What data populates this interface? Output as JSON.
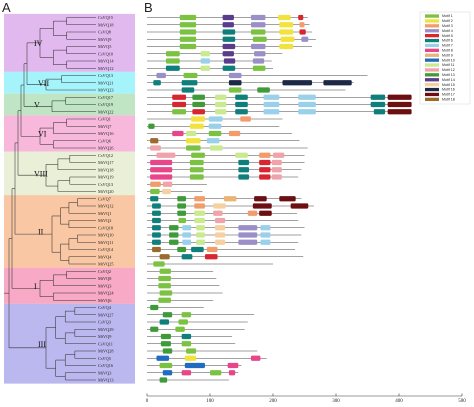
{
  "panels": {
    "a": "A",
    "b": "B"
  },
  "genes": [
    "CsVQ15",
    "MtVQ18",
    "CsVQ8",
    "MtVQ9",
    "MtVQ5",
    "CsVQ10",
    "MtVQ14",
    "MtVQ12",
    "CsVQ13",
    "MtVQ21",
    "MtVQ23",
    "CsVQ17",
    "CsVQ19",
    "MtVQ22",
    "CsVQ1",
    "MtVQ7",
    "MtVQ16",
    "CsVQ6",
    "MtVQ26",
    "CsVQ12",
    "MtVQ17",
    "MtVQ18",
    "MtVQ19",
    "CsVQ13",
    "MtVQ20",
    "CsVQ7",
    "MtVQ12",
    "MtVQ1",
    "MtVQ2",
    "CsVQ18",
    "MtVQ10",
    "MtVQ11",
    "CsVQ14",
    "MtVQ4",
    "MtVQ25",
    "CsVQ2",
    "MtVQ8",
    "MtVQ3",
    "MtVQ24",
    "MtVQ6",
    "CsVQ4",
    "MtVQ27",
    "CsVQ3",
    "MtVQ29",
    "MtVQ9",
    "CsVQ11",
    "MtVQ28",
    "CsVQ5",
    "CsVQ16",
    "MtVQ3",
    "MtVQ13"
  ],
  "clades": [
    {
      "label": "IV",
      "start": 0,
      "end": 7,
      "color": "#e2b9ee"
    },
    {
      "label": "VII",
      "start": 8,
      "end": 10,
      "color": "#a6f4fb"
    },
    {
      "label": "V",
      "start": 11,
      "end": 13,
      "color": "#bfe5c5"
    },
    {
      "label": "VI",
      "start": 14,
      "end": 18,
      "color": "#f7b8dc"
    },
    {
      "label": "VIII",
      "start": 19,
      "end": 24,
      "color": "#e9f0d7"
    },
    {
      "label": "II",
      "start": 25,
      "end": 34,
      "color": "#f9c7a4"
    },
    {
      "label": "I",
      "start": 35,
      "end": 39,
      "color": "#f7a9c5"
    },
    {
      "label": "III",
      "start": 40,
      "end": 50,
      "color": "#bbb8ef"
    }
  ],
  "axis": {
    "min": 0,
    "max": 500,
    "ticks": [
      "0",
      "100",
      "200",
      "300",
      "400",
      "500"
    ]
  },
  "legend": [
    {
      "name": "Motif 1",
      "color": "#7cc242"
    },
    {
      "name": "Motif 2",
      "color": "#f2e23c"
    },
    {
      "name": "Motif 3",
      "color": "#f29c6b"
    },
    {
      "name": "Motif 4",
      "color": "#9a8fc7"
    },
    {
      "name": "Motif 5",
      "color": "#d7262f"
    },
    {
      "name": "Motif 6",
      "color": "#0f7f7b"
    },
    {
      "name": "Motif 7",
      "color": "#9ad0ea"
    },
    {
      "name": "Motif 8",
      "color": "#e8458b"
    },
    {
      "name": "Motif 9",
      "color": "#e9b574"
    },
    {
      "name": "Motif 10",
      "color": "#1f6cc2"
    },
    {
      "name": "Motif 11",
      "color": "#c9ea8f"
    },
    {
      "name": "Motif 12",
      "color": "#f0a3a8"
    },
    {
      "name": "Motif 13",
      "color": "#3f9a3a"
    },
    {
      "name": "Motif 14",
      "color": "#5b3c8c"
    },
    {
      "name": "Motif 15",
      "color": "#f7d0a0"
    },
    {
      "name": "Motif 16",
      "color": "#1d2846"
    },
    {
      "name": "Motif 17",
      "color": "#6b0f12"
    },
    {
      "name": "Motif 18",
      "color": "#9b6a2f"
    }
  ],
  "proteins": [
    {
      "length": 255,
      "motifs": [
        [
          52,
          78,
          1
        ],
        [
          120,
          138,
          14
        ],
        [
          165,
          188,
          4
        ],
        [
          208,
          228,
          2
        ],
        [
          240,
          248,
          5
        ]
      ]
    },
    {
      "length": 258,
      "motifs": [
        [
          52,
          78,
          1
        ],
        [
          120,
          138,
          14
        ],
        [
          165,
          188,
          4
        ],
        [
          210,
          232,
          2
        ],
        [
          242,
          250,
          3
        ]
      ]
    },
    {
      "length": 262,
      "motifs": [
        [
          52,
          78,
          1
        ],
        [
          120,
          140,
          6
        ],
        [
          165,
          188,
          1
        ],
        [
          210,
          232,
          2
        ],
        [
          242,
          252,
          5
        ]
      ]
    },
    {
      "length": 268,
      "motifs": [
        [
          52,
          78,
          1
        ],
        [
          120,
          140,
          6
        ],
        [
          168,
          190,
          1
        ],
        [
          212,
          234,
          2
        ],
        [
          245,
          256,
          4
        ]
      ]
    },
    {
      "length": 262,
      "motifs": [
        [
          52,
          78,
          1
        ],
        [
          120,
          140,
          14
        ],
        [
          165,
          188,
          4
        ],
        [
          210,
          232,
          2
        ]
      ]
    },
    {
      "length": 215,
      "motifs": [
        [
          30,
          52,
          1
        ],
        [
          85,
          100,
          11
        ],
        [
          120,
          138,
          14
        ],
        [
          170,
          188,
          4
        ]
      ]
    },
    {
      "length": 198,
      "motifs": [
        [
          30,
          52,
          1
        ],
        [
          85,
          100,
          7
        ],
        [
          122,
          140,
          14
        ],
        [
          168,
          186,
          4
        ]
      ]
    },
    {
      "length": 200,
      "motifs": [
        [
          30,
          52,
          6
        ],
        [
          85,
          100,
          11
        ],
        [
          120,
          140,
          6
        ],
        [
          168,
          188,
          1
        ]
      ]
    },
    {
      "length": 350,
      "motifs": [
        [
          15,
          30,
          4
        ],
        [
          58,
          80,
          1
        ],
        [
          130,
          150,
          4
        ]
      ]
    },
    {
      "length": 328,
      "motifs": [
        [
          10,
          22,
          6
        ],
        [
          55,
          80,
          6
        ],
        [
          130,
          150,
          16
        ],
        [
          215,
          262,
          16
        ],
        [
          280,
          325,
          16
        ]
      ]
    },
    {
      "length": 315,
      "motifs": [
        [
          55,
          75,
          6
        ],
        [
          130,
          150,
          1
        ],
        [
          175,
          195,
          13
        ]
      ]
    },
    {
      "length": 415,
      "motifs": [
        [
          40,
          62,
          5
        ],
        [
          72,
          92,
          13
        ],
        [
          108,
          126,
          11
        ],
        [
          140,
          160,
          6
        ],
        [
          185,
          210,
          7
        ],
        [
          240,
          268,
          7
        ],
        [
          355,
          378,
          6
        ],
        [
          382,
          420,
          17
        ]
      ]
    },
    {
      "length": 410,
      "motifs": [
        [
          40,
          62,
          5
        ],
        [
          72,
          92,
          13
        ],
        [
          108,
          126,
          11
        ],
        [
          140,
          160,
          6
        ],
        [
          185,
          210,
          7
        ],
        [
          240,
          268,
          7
        ],
        [
          355,
          378,
          6
        ],
        [
          382,
          420,
          17
        ]
      ]
    },
    {
      "length": 405,
      "motifs": [
        [
          40,
          62,
          1
        ],
        [
          72,
          92,
          5
        ],
        [
          108,
          126,
          11
        ],
        [
          140,
          160,
          6
        ],
        [
          185,
          210,
          7
        ],
        [
          240,
          268,
          7
        ],
        [
          360,
          378,
          6
        ],
        [
          382,
          420,
          17
        ]
      ]
    },
    {
      "length": 215,
      "motifs": [
        [
          70,
          92,
          2
        ],
        [
          98,
          120,
          7
        ],
        [
          148,
          165,
          3
        ]
      ]
    },
    {
      "length": 210,
      "motifs": [
        [
          2,
          12,
          13
        ],
        [
          68,
          90,
          2
        ],
        [
          98,
          118,
          7
        ]
      ]
    },
    {
      "length": 230,
      "motifs": [
        [
          40,
          58,
          8
        ],
        [
          62,
          78,
          11
        ],
        [
          98,
          118,
          1
        ],
        [
          130,
          148,
          3
        ]
      ]
    },
    {
      "length": 242,
      "motifs": [
        [
          5,
          18,
          18
        ],
        [
          62,
          85,
          2
        ],
        [
          95,
          115,
          7
        ]
      ]
    },
    {
      "length": 255,
      "motifs": [
        [
          5,
          22,
          12
        ],
        [
          62,
          85,
          1
        ],
        [
          100,
          120,
          11
        ]
      ]
    },
    {
      "length": 250,
      "motifs": [
        [
          15,
          45,
          12
        ],
        [
          70,
          92,
          1
        ],
        [
          140,
          160,
          11
        ],
        [
          178,
          196,
          3
        ],
        [
          200,
          218,
          12
        ]
      ]
    },
    {
      "length": 250,
      "motifs": [
        [
          5,
          40,
          8
        ],
        [
          68,
          90,
          1
        ],
        [
          145,
          162,
          6
        ],
        [
          178,
          196,
          5
        ],
        [
          198,
          214,
          12
        ]
      ]
    },
    {
      "length": 245,
      "motifs": [
        [
          5,
          40,
          8
        ],
        [
          68,
          90,
          1
        ],
        [
          145,
          162,
          6
        ],
        [
          178,
          196,
          5
        ],
        [
          198,
          214,
          12
        ]
      ]
    },
    {
      "length": 240,
      "motifs": [
        [
          5,
          40,
          8
        ],
        [
          68,
          90,
          1
        ],
        [
          145,
          162,
          6
        ],
        [
          178,
          196,
          5
        ],
        [
          198,
          214,
          12
        ]
      ]
    },
    {
      "length": 95,
      "motifs": [
        [
          5,
          22,
          3
        ],
        [
          25,
          40,
          12
        ]
      ]
    },
    {
      "length": 88,
      "motifs": [
        [
          5,
          20,
          1
        ],
        [
          24,
          38,
          15
        ]
      ]
    },
    {
      "length": 245,
      "motifs": [
        [
          5,
          18,
          6
        ],
        [
          48,
          62,
          13
        ],
        [
          75,
          92,
          3
        ],
        [
          122,
          142,
          9
        ],
        [
          170,
          190,
          17
        ],
        [
          210,
          236,
          17
        ]
      ]
    },
    {
      "length": 265,
      "motifs": [
        [
          8,
          22,
          6
        ],
        [
          48,
          62,
          13
        ],
        [
          75,
          92,
          3
        ],
        [
          105,
          125,
          15
        ],
        [
          168,
          198,
          17
        ],
        [
          228,
          256,
          17
        ]
      ]
    },
    {
      "length": 238,
      "motifs": [
        [
          8,
          22,
          6
        ],
        [
          48,
          62,
          13
        ],
        [
          75,
          92,
          11
        ],
        [
          105,
          120,
          12
        ],
        [
          160,
          175,
          3
        ],
        [
          178,
          198,
          17
        ]
      ]
    },
    {
      "length": 240,
      "motifs": [
        [
          8,
          22,
          6
        ],
        [
          50,
          62,
          1
        ],
        [
          75,
          92,
          11
        ],
        [
          108,
          124,
          12
        ]
      ]
    },
    {
      "length": 250,
      "motifs": [
        [
          8,
          22,
          6
        ],
        [
          35,
          50,
          13
        ],
        [
          56,
          70,
          7
        ],
        [
          78,
          92,
          11
        ],
        [
          108,
          124,
          15
        ],
        [
          145,
          175,
          4
        ],
        [
          180,
          196,
          7
        ]
      ]
    },
    {
      "length": 245,
      "motifs": [
        [
          8,
          22,
          6
        ],
        [
          35,
          50,
          13
        ],
        [
          56,
          70,
          7
        ],
        [
          78,
          92,
          11
        ],
        [
          108,
          124,
          15
        ],
        [
          145,
          175,
          4
        ],
        [
          180,
          196,
          7
        ]
      ]
    },
    {
      "length": 240,
      "motifs": [
        [
          8,
          22,
          6
        ],
        [
          35,
          50,
          13
        ],
        [
          56,
          70,
          7
        ],
        [
          78,
          92,
          11
        ],
        [
          108,
          124,
          15
        ],
        [
          145,
          175,
          4
        ],
        [
          180,
          196,
          7
        ]
      ]
    },
    {
      "length": 235,
      "motifs": [
        [
          8,
          22,
          18
        ],
        [
          48,
          62,
          13
        ],
        [
          70,
          90,
          6
        ],
        [
          95,
          112,
          3
        ]
      ]
    },
    {
      "length": 248,
      "motifs": [
        [
          20,
          36,
          18
        ],
        [
          55,
          72,
          6
        ],
        [
          92,
          112,
          5
        ]
      ]
    },
    {
      "length": 200,
      "motifs": [
        [
          10,
          28,
          1
        ]
      ]
    },
    {
      "length": 105,
      "motifs": [
        [
          20,
          38,
          1
        ]
      ]
    },
    {
      "length": 110,
      "motifs": [
        [
          18,
          38,
          1
        ]
      ]
    },
    {
      "length": 115,
      "motifs": [
        [
          18,
          38,
          1
        ]
      ]
    },
    {
      "length": 120,
      "motifs": [
        [
          20,
          40,
          1
        ]
      ]
    },
    {
      "length": 105,
      "motifs": [
        [
          18,
          38,
          1
        ]
      ]
    },
    {
      "length": 90,
      "motifs": [
        [
          5,
          18,
          13
        ]
      ]
    },
    {
      "length": 170,
      "motifs": [
        [
          25,
          40,
          13
        ],
        [
          55,
          70,
          1
        ]
      ]
    },
    {
      "length": 160,
      "motifs": [
        [
          20,
          35,
          6
        ],
        [
          50,
          65,
          1
        ]
      ]
    },
    {
      "length": 155,
      "motifs": [
        [
          5,
          18,
          13
        ],
        [
          45,
          60,
          1
        ]
      ]
    },
    {
      "length": 135,
      "motifs": [
        [
          22,
          38,
          13
        ],
        [
          55,
          70,
          6
        ]
      ]
    },
    {
      "length": 140,
      "motifs": [
        [
          22,
          38,
          13
        ],
        [
          55,
          70,
          1
        ]
      ]
    },
    {
      "length": 175,
      "motifs": [
        [
          25,
          40,
          13
        ],
        [
          62,
          78,
          1
        ]
      ]
    },
    {
      "length": 190,
      "motifs": [
        [
          15,
          35,
          10
        ],
        [
          60,
          78,
          2
        ],
        [
          165,
          180,
          8
        ]
      ]
    },
    {
      "length": 150,
      "motifs": [
        [
          20,
          40,
          1
        ],
        [
          60,
          92,
          10
        ],
        [
          128,
          145,
          8
        ]
      ]
    },
    {
      "length": 145,
      "motifs": [
        [
          25,
          40,
          10
        ],
        [
          55,
          70,
          8
        ],
        [
          100,
          118,
          1
        ],
        [
          130,
          140,
          8
        ]
      ]
    },
    {
      "length": 130,
      "motifs": [
        [
          20,
          32,
          13
        ]
      ]
    }
  ]
}
